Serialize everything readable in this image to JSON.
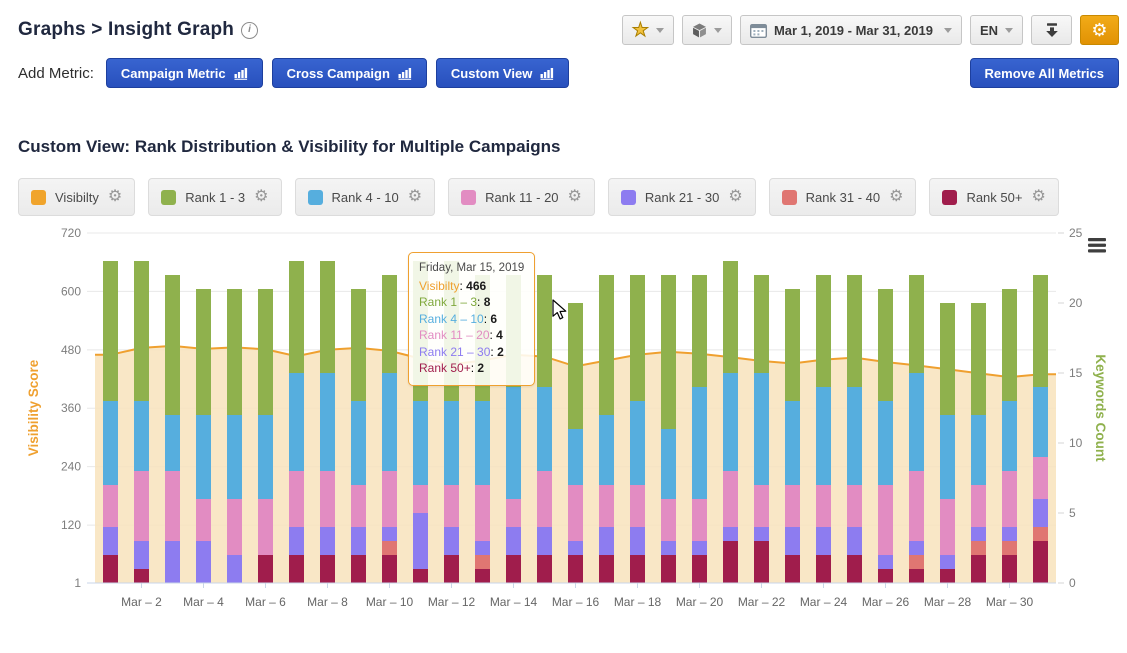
{
  "header": {
    "breadcrumb": "Graphs > Insight Graph",
    "info_icon": "info"
  },
  "toolbar": {
    "favorite_button": "favorites",
    "package_button": "modules",
    "date_range": "Mar 1, 2019 - Mar 31, 2019",
    "language": "EN",
    "download_button": "download",
    "settings_button": "settings",
    "accent_color": "#eda312"
  },
  "add_metric": {
    "label": "Add Metric:",
    "buttons": [
      "Campaign Metric",
      "Cross Campaign",
      "Custom View"
    ],
    "remove_button": "Remove All Metrics",
    "button_color": "#2d55c2"
  },
  "section": {
    "title": "Custom View: Rank Distribution & Visibility for Multiple Campaigns"
  },
  "legend": [
    {
      "label": "Visibilty",
      "color": "#f0a42c"
    },
    {
      "label": "Rank 1 - 3",
      "color": "#8fb14d"
    },
    {
      "label": "Rank 4 - 10",
      "color": "#56aede"
    },
    {
      "label": "Rank 11 - 20",
      "color": "#e28cc2"
    },
    {
      "label": "Rank 21 - 30",
      "color": "#8d7cf0"
    },
    {
      "label": "Rank 31 - 40",
      "color": "#e07672"
    },
    {
      "label": "Rank 50+",
      "color": "#a01d4c"
    }
  ],
  "tooltip": {
    "date": "Friday, Mar 15, 2019",
    "rows": [
      {
        "label": "Visibilty",
        "value": "466",
        "color": "#efa02f"
      },
      {
        "label": "Rank 1 – 3",
        "value": "8",
        "color": "#7fa83c"
      },
      {
        "label": "Rank 4 – 10",
        "value": "6",
        "color": "#56aede"
      },
      {
        "label": "Rank 11 – 20",
        "value": "4",
        "color": "#e28cc2"
      },
      {
        "label": "Rank 21 – 30",
        "value": "2",
        "color": "#8d7cf0"
      },
      {
        "label": "Rank 50+",
        "value": "2",
        "color": "#a01d4c"
      }
    ]
  },
  "chart_data": {
    "type": "bar",
    "subtype": "stacked-columns-with-area-line",
    "categories": [
      "Mar 1",
      "Mar 2",
      "Mar 3",
      "Mar 4",
      "Mar 5",
      "Mar 6",
      "Mar 7",
      "Mar 8",
      "Mar 9",
      "Mar 10",
      "Mar 11",
      "Mar 12",
      "Mar 13",
      "Mar 14",
      "Mar 15",
      "Mar 16",
      "Mar 17",
      "Mar 18",
      "Mar 19",
      "Mar 20",
      "Mar 21",
      "Mar 22",
      "Mar 23",
      "Mar 24",
      "Mar 25",
      "Mar 26",
      "Mar 27",
      "Mar 28",
      "Mar 29",
      "Mar 30",
      "Mar 31"
    ],
    "x_tick_labels": [
      "Mar – 2",
      "Mar – 4",
      "Mar – 6",
      "Mar – 8",
      "Mar – 10",
      "Mar – 12",
      "Mar – 14",
      "Mar – 16",
      "Mar – 18",
      "Mar – 20",
      "Mar – 22",
      "Mar – 24",
      "Mar – 26",
      "Mar – 28",
      "Mar – 30"
    ],
    "left_axis": {
      "label": "Visibility Score",
      "ticks": [
        720,
        600,
        480,
        360,
        240,
        120,
        1
      ],
      "range": [
        1,
        720
      ],
      "color": "#efa02f"
    },
    "right_axis": {
      "label": "Keywords Count",
      "ticks": [
        25,
        20,
        15,
        10,
        5,
        0
      ],
      "range": [
        0,
        25
      ],
      "color": "#8fb14d"
    },
    "grid": true,
    "legend_position": "top",
    "stack_order_bottom_to_top": [
      "Rank 50+",
      "Rank 31 - 40",
      "Rank 21 - 30",
      "Rank 11 - 20",
      "Rank 4 - 10",
      "Rank 1 - 3"
    ],
    "series": [
      {
        "name": "Visibilty",
        "type": "area",
        "axis": "left",
        "line_color": "#efa02f",
        "fill_color": "#f8e3bc",
        "values": [
          470,
          484,
          488,
          482,
          485,
          481,
          467,
          480,
          484,
          478,
          462,
          450,
          458,
          470,
          466,
          446,
          458,
          470,
          476,
          472,
          465,
          457,
          452,
          460,
          464,
          455,
          448,
          440,
          432,
          424,
          430
        ]
      },
      {
        "name": "Rank 1 - 3",
        "type": "bar",
        "axis": "right",
        "color": "#8fb14d",
        "values": [
          10,
          10,
          10,
          9,
          9,
          9,
          8,
          8,
          8,
          7,
          10,
          10,
          9,
          8,
          8,
          9,
          10,
          9,
          11,
          8,
          8,
          7,
          8,
          8,
          8,
          8,
          7,
          8,
          8,
          8,
          8
        ]
      },
      {
        "name": "Rank 4 - 10",
        "type": "bar",
        "axis": "right",
        "color": "#56aede",
        "values": [
          6,
          5,
          4,
          6,
          6,
          6,
          7,
          7,
          6,
          7,
          6,
          6,
          6,
          8,
          6,
          4,
          5,
          6,
          5,
          8,
          7,
          8,
          6,
          7,
          7,
          6,
          7,
          6,
          5,
          5,
          5
        ]
      },
      {
        "name": "Rank 11 - 20",
        "type": "bar",
        "axis": "right",
        "color": "#e28cc2",
        "values": [
          3,
          5,
          5,
          3,
          4,
          4,
          4,
          4,
          3,
          4,
          2,
          3,
          4,
          2,
          4,
          4,
          3,
          3,
          3,
          3,
          4,
          3,
          3,
          3,
          3,
          5,
          5,
          4,
          3,
          4,
          3
        ]
      },
      {
        "name": "Rank 21 - 30",
        "type": "bar",
        "axis": "right",
        "color": "#8d7cf0",
        "values": [
          2,
          2,
          3,
          3,
          2,
          0,
          2,
          2,
          2,
          1,
          4,
          2,
          1,
          2,
          2,
          1,
          2,
          2,
          1,
          1,
          1,
          1,
          2,
          2,
          2,
          1,
          1,
          1,
          1,
          1,
          2
        ]
      },
      {
        "name": "Rank 31 - 40",
        "type": "bar",
        "axis": "right",
        "color": "#e07672",
        "values": [
          0,
          0,
          0,
          0,
          0,
          0,
          0,
          0,
          0,
          1,
          0,
          0,
          1,
          0,
          0,
          0,
          0,
          0,
          0,
          0,
          0,
          0,
          0,
          0,
          0,
          0,
          1,
          0,
          1,
          1,
          1
        ]
      },
      {
        "name": "Rank 50+",
        "type": "bar",
        "axis": "right",
        "color": "#a01d4c",
        "values": [
          2,
          1,
          0,
          0,
          0,
          2,
          2,
          2,
          2,
          2,
          1,
          2,
          1,
          2,
          2,
          2,
          2,
          2,
          2,
          2,
          3,
          3,
          2,
          2,
          2,
          1,
          1,
          1,
          2,
          2,
          3
        ]
      }
    ]
  }
}
